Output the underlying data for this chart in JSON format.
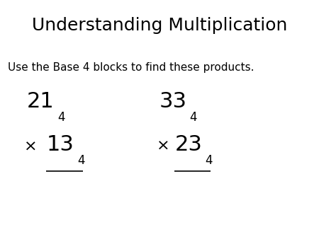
{
  "title": "Understanding Multiplication",
  "subtitle": "Use the Base 4 blocks to find these products.",
  "title_fontsize": 18,
  "subtitle_fontsize": 11,
  "background_color": "#ffffff",
  "text_color": "#000000",
  "main_fontsize": 22,
  "sub_fontsize": 12,
  "times_fontsize": 16,
  "p1_num": "21",
  "p1_mul": "13",
  "p2_num": "33",
  "p2_mul": "23",
  "sub": "4"
}
